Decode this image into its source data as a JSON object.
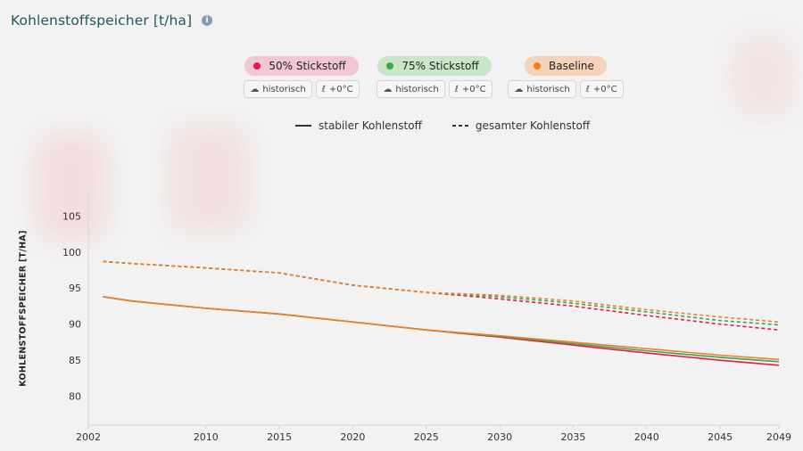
{
  "title": "Kohlenstoffspeicher [t/ha]",
  "scenarios": [
    {
      "label": "50% Stickstoff",
      "color": "#e8194f",
      "bg": "#f2c6d2",
      "climate": "historisch",
      "temp": "+0°C"
    },
    {
      "label": "75% Stickstoff",
      "color": "#3aa84a",
      "bg": "#c9e6c8",
      "climate": "historisch",
      "temp": "+0°C"
    },
    {
      "label": "Baseline",
      "color": "#f07e26",
      "bg": "#f5d2b8",
      "climate": "historisch",
      "temp": "+0°C"
    }
  ],
  "legend": {
    "solid": "stabiler Kohlenstoff",
    "dashed": "gesamter Kohlenstoff"
  },
  "chart_data": {
    "type": "line",
    "ylabel": "KOHLENSTOFFSPEICHER [T/HA]",
    "xlim": [
      2002,
      2049
    ],
    "ylim": [
      76,
      108
    ],
    "xticks": [
      "2002",
      "2010",
      "2015",
      "2020",
      "2025",
      "2030",
      "2035",
      "2040",
      "2045",
      "2049"
    ],
    "yticks": [
      "80",
      "85",
      "90",
      "95",
      "100",
      "105"
    ],
    "x": [
      2003,
      2005,
      2010,
      2015,
      2020,
      2025,
      2030,
      2035,
      2040,
      2045,
      2049
    ],
    "series": [
      {
        "name": "50% Stickstoff",
        "kind": "stabiler Kohlenstoff",
        "color": "#e8194f",
        "values": [
          93.8,
          93.2,
          92.2,
          91.4,
          90.3,
          89.2,
          88.2,
          87.1,
          86.0,
          85.0,
          84.3
        ]
      },
      {
        "name": "75% Stickstoff",
        "kind": "stabiler Kohlenstoff",
        "color": "#3aa84a",
        "values": [
          93.8,
          93.2,
          92.2,
          91.4,
          90.3,
          89.2,
          88.3,
          87.3,
          86.3,
          85.4,
          84.8
        ]
      },
      {
        "name": "Baseline",
        "kind": "stabiler Kohlenstoff",
        "color": "#f07e26",
        "values": [
          93.8,
          93.2,
          92.2,
          91.4,
          90.3,
          89.2,
          88.4,
          87.5,
          86.6,
          85.7,
          85.1
        ]
      },
      {
        "name": "50% Stickstoff",
        "kind": "gesamter Kohlenstoff",
        "color": "#e8194f",
        "values": [
          98.7,
          98.4,
          97.8,
          97.1,
          95.4,
          94.4,
          93.5,
          92.5,
          91.2,
          90.0,
          89.2
        ]
      },
      {
        "name": "75% Stickstoff",
        "kind": "gesamter Kohlenstoff",
        "color": "#3aa84a",
        "values": [
          98.7,
          98.4,
          97.8,
          97.1,
          95.4,
          94.4,
          93.8,
          92.9,
          91.7,
          90.5,
          89.9
        ]
      },
      {
        "name": "Baseline",
        "kind": "gesamter Kohlenstoff",
        "color": "#f07e26",
        "values": [
          98.7,
          98.4,
          97.8,
          97.1,
          95.4,
          94.4,
          94.0,
          93.2,
          92.0,
          91.0,
          90.3
        ]
      }
    ]
  }
}
